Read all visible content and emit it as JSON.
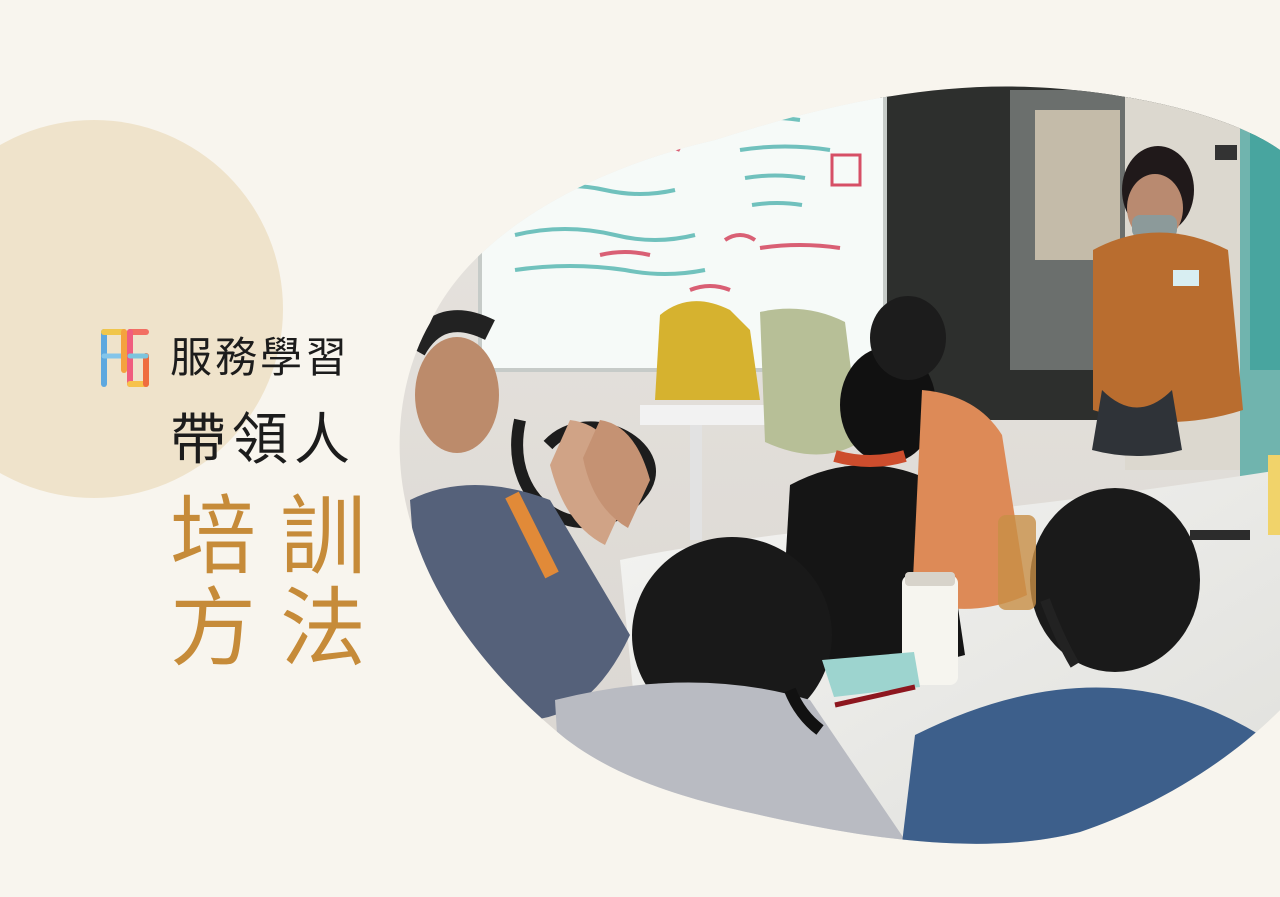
{
  "title": {
    "line1": "服務學習",
    "line2": "帶領人",
    "line3": "培訓",
    "line4": "方法"
  },
  "logo": {
    "icon": "service-learning-logo-icon"
  },
  "colors": {
    "background": "#f8f5ee",
    "circle": "#efe3cb",
    "accent": "#c68b39",
    "text": "#1c1c1c"
  }
}
